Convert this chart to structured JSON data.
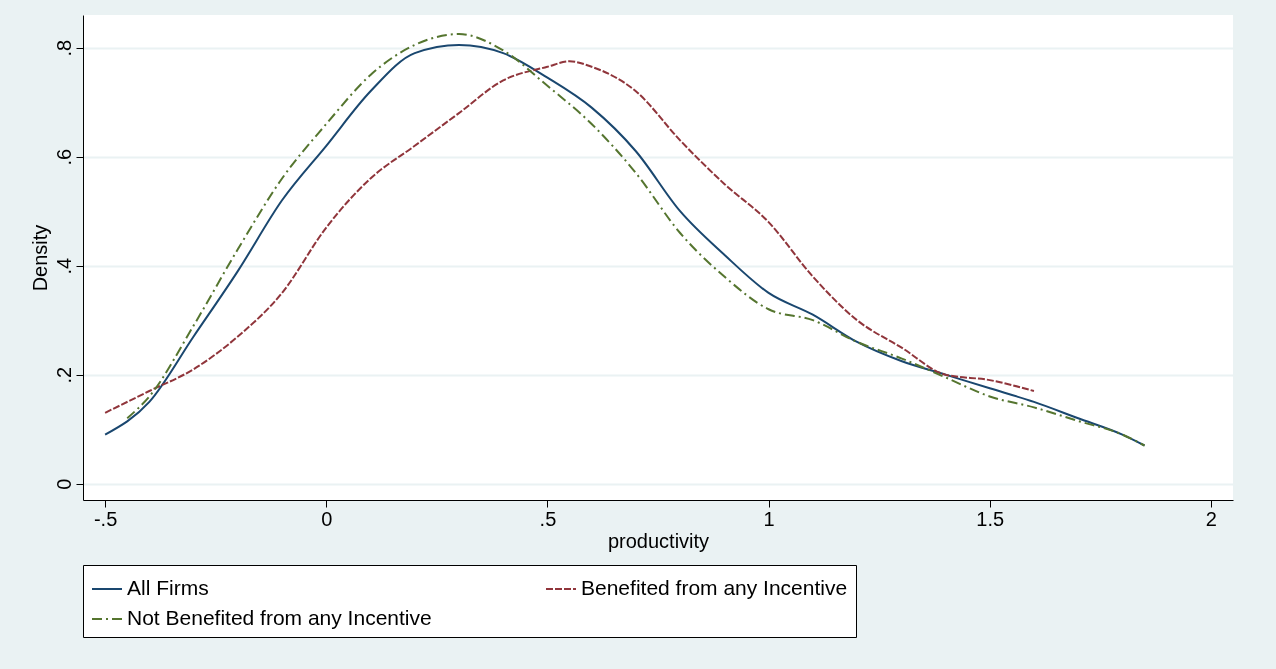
{
  "chart_data": {
    "type": "line",
    "xlabel": "productivity",
    "ylabel": "Density",
    "xlim": [
      -0.55,
      2.05
    ],
    "ylim": [
      -0.03,
      0.86
    ],
    "xticks": [
      {
        "value": -0.5,
        "label": "-.5"
      },
      0,
      {
        "value": 0.5,
        "label": ".5"
      },
      1,
      1.5,
      2
    ],
    "yticks": [
      0,
      {
        "value": 0.2,
        "label": ".2"
      },
      {
        "value": 0.4,
        "label": ".4"
      },
      {
        "value": 0.6,
        "label": ".6"
      },
      {
        "value": 0.8,
        "label": ".8"
      }
    ],
    "grid": "y",
    "legend": "bottom",
    "marker": "none",
    "series": [
      {
        "name": "All Firms",
        "color": "#1a476f",
        "line_style": "solid",
        "x": [
          -0.5,
          -0.4,
          -0.3,
          -0.2,
          -0.1,
          0,
          0.1,
          0.2,
          0.3,
          0.4,
          0.5,
          0.6,
          0.7,
          0.8,
          0.9,
          1.0,
          1.1,
          1.2,
          1.3,
          1.4,
          1.5,
          1.6,
          1.7,
          1.8,
          1.85
        ],
        "values": [
          0.09,
          0.15,
          0.27,
          0.39,
          0.52,
          0.62,
          0.72,
          0.79,
          0.805,
          0.79,
          0.745,
          0.69,
          0.61,
          0.5,
          0.42,
          0.35,
          0.31,
          0.26,
          0.225,
          0.2,
          0.175,
          0.15,
          0.12,
          0.09,
          0.07
        ]
      },
      {
        "name": "Benefited from any Incentive",
        "color": "#90353b",
        "line_style": "dashed",
        "x": [
          -0.5,
          -0.4,
          -0.3,
          -0.2,
          -0.1,
          0,
          0.1,
          0.2,
          0.3,
          0.4,
          0.5,
          0.55,
          0.6,
          0.7,
          0.8,
          0.9,
          1.0,
          1.1,
          1.2,
          1.3,
          1.4,
          1.5,
          1.6
        ],
        "values": [
          0.13,
          0.17,
          0.21,
          0.27,
          0.35,
          0.47,
          0.56,
          0.62,
          0.68,
          0.74,
          0.765,
          0.775,
          0.765,
          0.72,
          0.63,
          0.55,
          0.48,
          0.38,
          0.3,
          0.25,
          0.2,
          0.19,
          0.17
        ]
      },
      {
        "name": "Not Benefited from any Incentive",
        "color": "#55752f",
        "line_style": "dashdot",
        "x": [
          -0.45,
          -0.4,
          -0.3,
          -0.2,
          -0.1,
          0,
          0.1,
          0.2,
          0.3,
          0.4,
          0.5,
          0.6,
          0.7,
          0.8,
          0.9,
          1.0,
          1.1,
          1.2,
          1.3,
          1.4,
          1.5,
          1.6,
          1.7,
          1.8,
          1.85
        ],
        "values": [
          0.12,
          0.16,
          0.29,
          0.43,
          0.56,
          0.66,
          0.75,
          0.805,
          0.825,
          0.795,
          0.73,
          0.66,
          0.57,
          0.46,
          0.38,
          0.32,
          0.3,
          0.26,
          0.23,
          0.195,
          0.16,
          0.14,
          0.115,
          0.09,
          0.07
        ]
      }
    ]
  }
}
